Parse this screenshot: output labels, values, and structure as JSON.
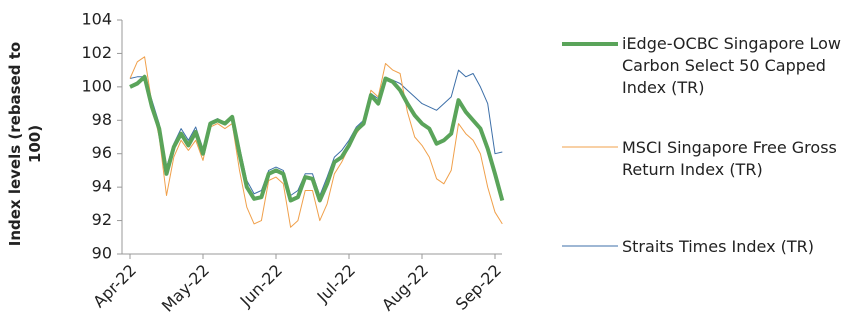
{
  "chart_data": {
    "type": "line",
    "y_label": "Index levels (rebased to 100)",
    "categories": [
      "Apr-22",
      null,
      null,
      null,
      null,
      null,
      null,
      null,
      null,
      null,
      "May-22",
      null,
      null,
      null,
      null,
      null,
      null,
      null,
      null,
      null,
      "Jun-22",
      null,
      null,
      null,
      null,
      null,
      null,
      null,
      null,
      null,
      "Jul-22",
      null,
      null,
      null,
      null,
      null,
      null,
      null,
      null,
      null,
      "Aug-22",
      null,
      null,
      null,
      null,
      null,
      null,
      null,
      null,
      null,
      "Sep-22",
      null
    ],
    "ylim": [
      90,
      104
    ],
    "yticks": [
      90,
      92,
      94,
      96,
      98,
      100,
      102,
      104
    ],
    "series": [
      {
        "name": "iEdge-OCBC Singapore Low Carbon Select 50 Capped Index (TR)",
        "color": "#5aa45a",
        "width": 4,
        "values": [
          100.0,
          100.2,
          100.6,
          98.8,
          97.5,
          94.8,
          96.4,
          97.2,
          96.5,
          97.3,
          96.0,
          97.8,
          98.0,
          97.8,
          98.2,
          96.0,
          94.0,
          93.3,
          93.4,
          94.8,
          95.0,
          94.8,
          93.2,
          93.4,
          94.6,
          94.5,
          93.2,
          94.2,
          95.5,
          95.8,
          96.5,
          97.4,
          97.8,
          99.5,
          99.0,
          100.5,
          100.3,
          99.8,
          99.0,
          98.3,
          97.8,
          97.5,
          96.6,
          96.8,
          97.2,
          99.2,
          98.5,
          98.0,
          97.5,
          96.3,
          94.8,
          93.2
        ]
      },
      {
        "name": "MSCI Singapore Free Gross Return Index (TR)",
        "color": "#f0a04b",
        "width": 1,
        "values": [
          100.5,
          101.5,
          101.8,
          99.0,
          97.0,
          93.5,
          95.8,
          96.8,
          96.2,
          96.8,
          95.6,
          97.6,
          97.8,
          97.5,
          97.8,
          95.0,
          92.8,
          91.8,
          92.0,
          94.4,
          94.6,
          94.2,
          91.6,
          92.0,
          93.8,
          93.8,
          92.0,
          93.0,
          94.8,
          95.5,
          96.4,
          97.2,
          97.8,
          99.8,
          99.4,
          101.4,
          101.0,
          100.8,
          98.5,
          97.0,
          96.5,
          95.8,
          94.5,
          94.2,
          95.0,
          97.8,
          97.2,
          96.8,
          96.0,
          94.0,
          92.5,
          91.8
        ]
      },
      {
        "name": "Straits Times Index (TR)",
        "color": "#3d6fa8",
        "width": 1,
        "values": [
          100.5,
          100.6,
          100.6,
          99.2,
          97.8,
          95.2,
          96.6,
          97.5,
          96.8,
          97.6,
          96.3,
          97.9,
          98.1,
          97.8,
          98.2,
          96.4,
          94.4,
          93.6,
          93.8,
          95.0,
          95.2,
          95.0,
          93.5,
          93.8,
          94.8,
          94.8,
          93.5,
          94.6,
          95.8,
          96.2,
          96.8,
          97.6,
          98.0,
          99.6,
          99.3,
          100.5,
          100.4,
          100.2,
          99.8,
          99.4,
          99.0,
          98.8,
          98.6,
          99.0,
          99.4,
          101.0,
          100.6,
          100.8,
          100.0,
          99.0,
          96.0,
          96.1
        ]
      }
    ]
  }
}
